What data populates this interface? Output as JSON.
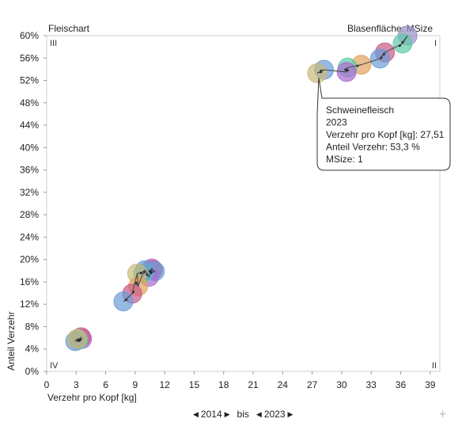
{
  "chart_data": {
    "type": "scatter",
    "title": "Fleischart",
    "size_label": "Blasenfläche:",
    "size_value": "MSize",
    "xlabel": "Verzehr pro Kopf [kg]",
    "ylabel": "Anteil Verzehr",
    "xlim": [
      0,
      40
    ],
    "ylim": [
      0,
      60
    ],
    "x_ticks": [
      "0",
      "3",
      "6",
      "9",
      "12",
      "15",
      "18",
      "21",
      "24",
      "27",
      "30",
      "33",
      "36",
      "39"
    ],
    "y_ticks": [
      "0%",
      "4%",
      "8%",
      "12%",
      "16%",
      "20%",
      "24%",
      "28%",
      "32%",
      "36%",
      "40%",
      "44%",
      "48%",
      "52%",
      "56%",
      "60%"
    ],
    "quadrants": {
      "top_left": "III",
      "top_right": "I",
      "bottom_left": "IV",
      "bottom_right": "II"
    },
    "grid": false,
    "series": [
      {
        "color": "#9b8fc9",
        "points": [
          [
            36.7,
            60.0
          ],
          [
            36.2,
            58.8
          ]
        ]
      },
      {
        "color": "#60c9a8",
        "points": [
          [
            36.2,
            58.6
          ],
          [
            35.9,
            58.2
          ]
        ]
      },
      {
        "color": "#c85a8a",
        "points": [
          [
            34.4,
            57.0
          ],
          [
            34.0,
            56.0
          ]
        ]
      },
      {
        "color": "#6a9cd6",
        "points": [
          [
            33.9,
            55.9
          ],
          [
            34.3,
            56.7
          ]
        ]
      },
      {
        "color": "#e1a35e",
        "points": [
          [
            32.0,
            54.8
          ],
          [
            31.6,
            54.6
          ]
        ]
      },
      {
        "color": "#60c9a8",
        "points": [
          [
            30.6,
            54.3
          ],
          [
            30.4,
            53.9
          ]
        ]
      },
      {
        "color": "#a96bd1",
        "points": [
          [
            30.5,
            53.5
          ],
          [
            30.6,
            53.8
          ]
        ]
      },
      {
        "color": "#6a9cd6",
        "points": [
          [
            28.2,
            53.9
          ],
          [
            27.9,
            53.7
          ]
        ]
      },
      {
        "color": "#c9b97a",
        "points": [
          [
            27.51,
            53.3
          ],
          [
            27.9,
            53.5
          ]
        ]
      },
      {
        "color": "#a96bd1",
        "points": [
          [
            10.7,
            18.4
          ],
          [
            10.5,
            17.9
          ]
        ]
      },
      {
        "color": "#c85a8a",
        "points": [
          [
            10.8,
            18.1
          ],
          [
            10.6,
            17.8
          ]
        ]
      },
      {
        "color": "#6a9cd6",
        "points": [
          [
            11.0,
            17.9
          ],
          [
            10.6,
            17.6
          ]
        ]
      },
      {
        "color": "#a96bd1",
        "points": [
          [
            10.4,
            16.9
          ],
          [
            10.2,
            17.3
          ]
        ]
      },
      {
        "color": "#60c9a8",
        "points": [
          [
            9.8,
            17.5
          ],
          [
            9.9,
            17.7
          ]
        ]
      },
      {
        "color": "#6a9cd6",
        "points": [
          [
            10.0,
            18.1
          ],
          [
            9.9,
            17.8
          ]
        ]
      },
      {
        "color": "#c9b97a",
        "points": [
          [
            9.2,
            17.5
          ],
          [
            9.6,
            17.6
          ]
        ]
      },
      {
        "color": "#e1a35e",
        "points": [
          [
            9.3,
            15.2
          ],
          [
            9.1,
            15.8
          ]
        ]
      },
      {
        "color": "#c85a8a",
        "points": [
          [
            8.7,
            13.9
          ],
          [
            8.8,
            14.2
          ]
        ]
      },
      {
        "color": "#6a9cd6",
        "points": [
          [
            7.8,
            12.5
          ],
          [
            8.1,
            12.8
          ]
        ]
      },
      {
        "color": "#a96bd1",
        "points": [
          [
            3.6,
            5.8
          ],
          [
            3.4,
            5.6
          ]
        ]
      },
      {
        "color": "#c85a8a",
        "points": [
          [
            3.5,
            6.1
          ],
          [
            3.3,
            5.7
          ]
        ]
      },
      {
        "color": "#60c9a8",
        "points": [
          [
            3.2,
            5.6
          ],
          [
            3.3,
            5.5
          ]
        ]
      },
      {
        "color": "#6a9cd6",
        "points": [
          [
            2.9,
            5.4
          ],
          [
            3.2,
            5.5
          ]
        ]
      },
      {
        "color": "#c9b97a",
        "points": [
          [
            3.1,
            5.8
          ],
          [
            3.2,
            5.6
          ]
        ]
      }
    ],
    "tooltip": {
      "lines": [
        "Schweinefleisch",
        "2023",
        "Verzehr pro Kopf [kg]: 27,51",
        "Anteil Verzehr: 53,3 %",
        "MSize: 1"
      ],
      "anchor": [
        27.51,
        53.3
      ]
    }
  },
  "nav": {
    "from": "2014",
    "bis": "bis",
    "to": "2023"
  }
}
